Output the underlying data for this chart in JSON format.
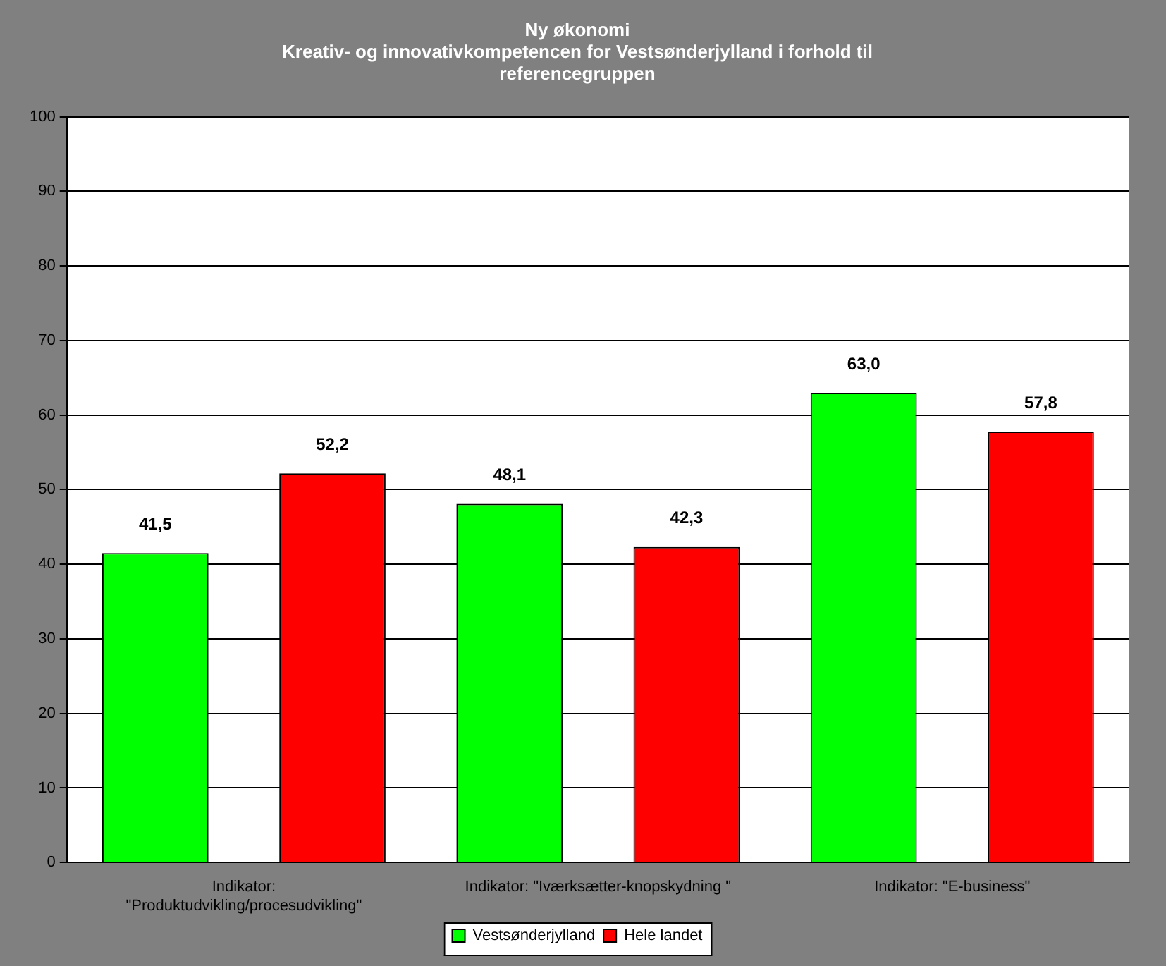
{
  "chart_data": {
    "type": "bar",
    "title": "Ny økonomi\nKreativ- og innovativkompetencen for Vestsønderjylland i forhold til\nreferencegruppen",
    "categories": [
      "Indikator: \"Produktudvikling/procesudvikling\"",
      "Indikator: \"Iværksætter-knopskydning \"",
      "Indikator: \"E-business\""
    ],
    "series": [
      {
        "name": "Vestsønderjylland",
        "color": "#00ff00",
        "values": [
          41.5,
          48.1,
          63.0
        ],
        "value_labels": [
          "41,5",
          "48,1",
          "63,0"
        ]
      },
      {
        "name": "Hele landet",
        "color": "#ff0000",
        "values": [
          52.2,
          42.3,
          57.8
        ],
        "value_labels": [
          "52,2",
          "42,3",
          "57,8"
        ]
      }
    ],
    "ylim": [
      0,
      100
    ],
    "yticks": [
      0,
      10,
      20,
      30,
      40,
      50,
      60,
      70,
      80,
      90,
      100
    ],
    "grid": "y",
    "legend": "bottom"
  }
}
